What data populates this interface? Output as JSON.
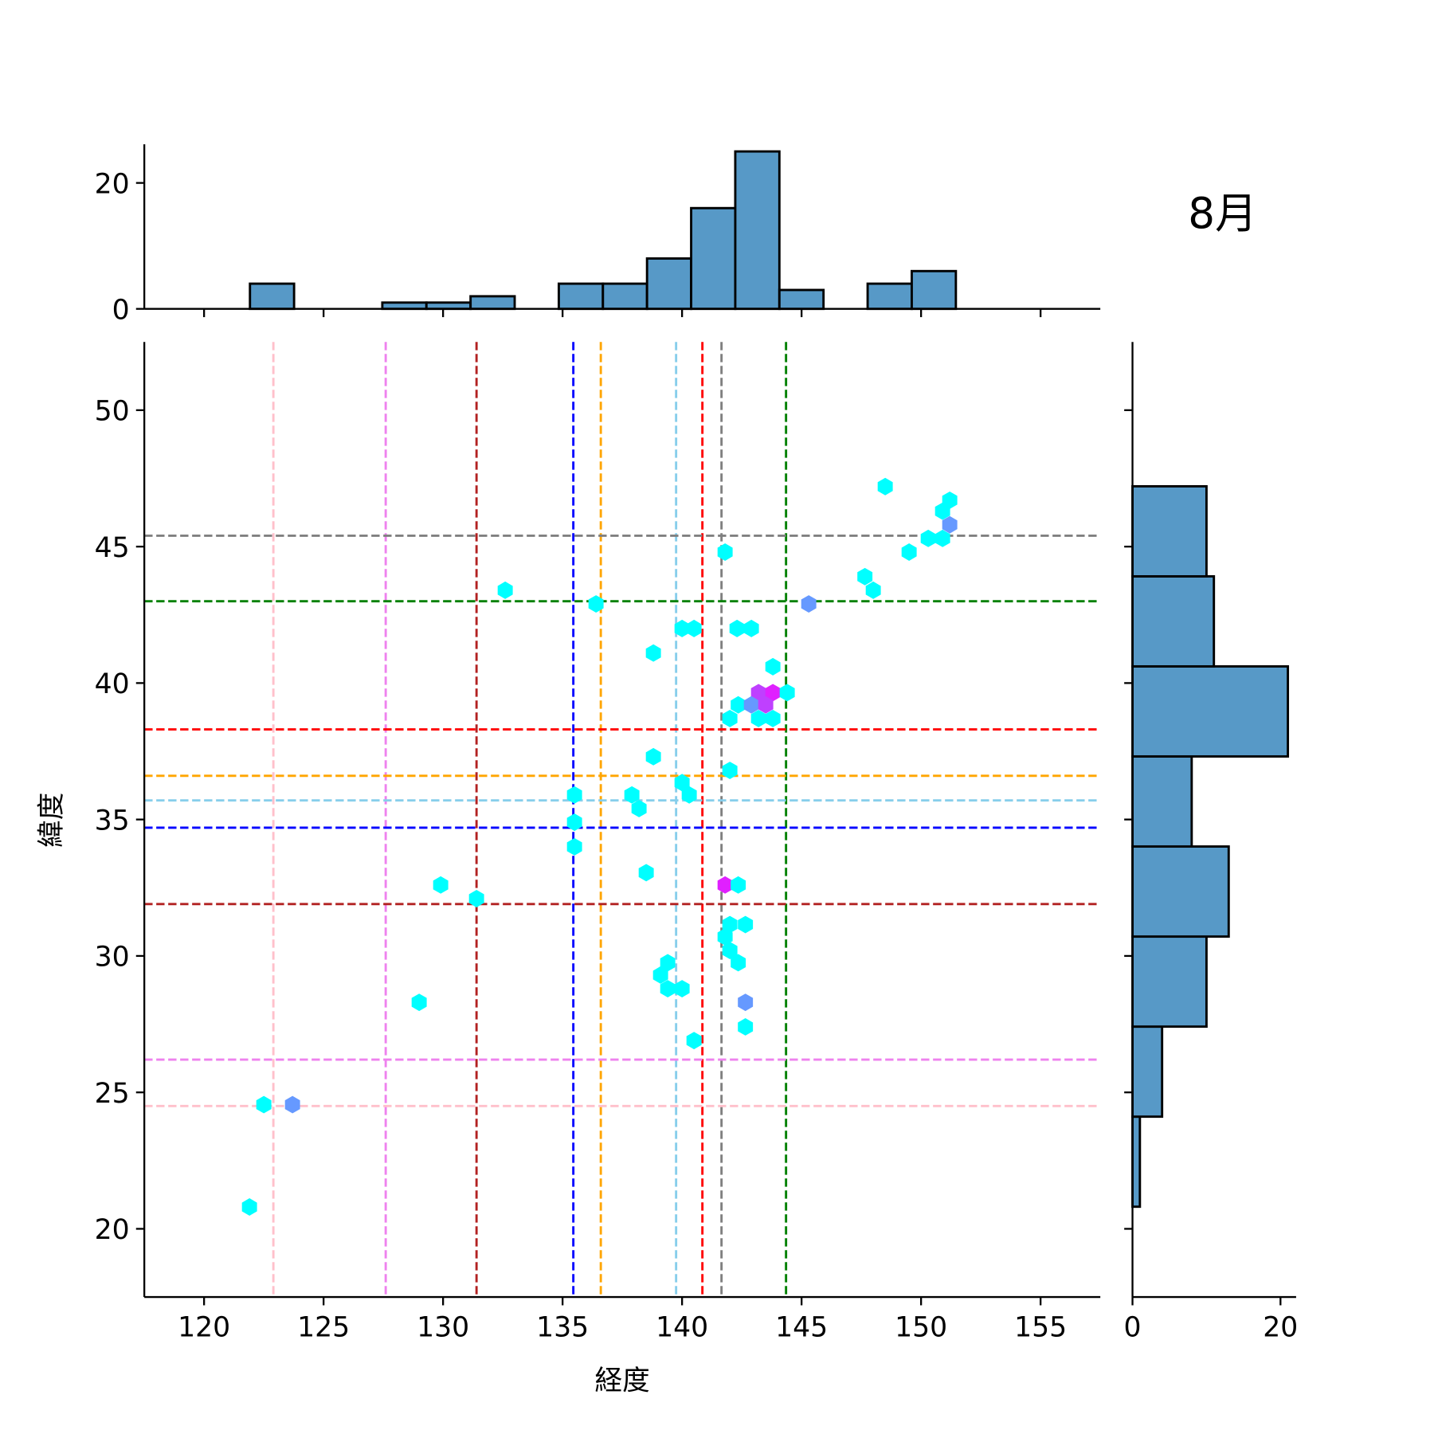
{
  "chart_data": {
    "type": "hexbin-jointplot",
    "title": "8月",
    "xlabel": "経度",
    "ylabel": "緯度",
    "xlim": [
      117.5,
      157.5
    ],
    "ylim": [
      17.5,
      52.5
    ],
    "xticks": [
      120,
      125,
      130,
      135,
      140,
      145,
      150,
      155
    ],
    "yticks": [
      20,
      25,
      30,
      35,
      40,
      45,
      50
    ],
    "grid": false,
    "colors": {
      "hist": "#5799c7",
      "low": "#00ffff",
      "mid": "#6699ff",
      "high": "#bf40ff",
      "max": "#e020ff"
    },
    "hexbins": [
      {
        "lon": 148.5,
        "lat": 47.2,
        "c": 1
      },
      {
        "lon": 151.2,
        "lat": 46.7,
        "c": 1
      },
      {
        "lon": 150.9,
        "lat": 46.3,
        "c": 1
      },
      {
        "lon": 151.2,
        "lat": 45.8,
        "c": 2
      },
      {
        "lon": 150.3,
        "lat": 45.3,
        "c": 1
      },
      {
        "lon": 150.9,
        "lat": 45.3,
        "c": 1
      },
      {
        "lon": 149.5,
        "lat": 44.8,
        "c": 1
      },
      {
        "lon": 141.8,
        "lat": 44.8,
        "c": 1
      },
      {
        "lon": 147.65,
        "lat": 43.9,
        "c": 1
      },
      {
        "lon": 148.0,
        "lat": 43.4,
        "c": 1
      },
      {
        "lon": 132.6,
        "lat": 43.4,
        "c": 1
      },
      {
        "lon": 136.4,
        "lat": 42.9,
        "c": 1
      },
      {
        "lon": 145.3,
        "lat": 42.9,
        "c": 2
      },
      {
        "lon": 140.0,
        "lat": 42.0,
        "c": 1
      },
      {
        "lon": 140.5,
        "lat": 42.0,
        "c": 1
      },
      {
        "lon": 142.3,
        "lat": 42.0,
        "c": 1
      },
      {
        "lon": 142.9,
        "lat": 42.0,
        "c": 1
      },
      {
        "lon": 138.8,
        "lat": 41.1,
        "c": 1
      },
      {
        "lon": 143.8,
        "lat": 40.6,
        "c": 1
      },
      {
        "lon": 143.2,
        "lat": 39.65,
        "c": 3
      },
      {
        "lon": 143.8,
        "lat": 39.65,
        "c": 4
      },
      {
        "lon": 144.4,
        "lat": 39.65,
        "c": 1
      },
      {
        "lon": 142.35,
        "lat": 39.2,
        "c": 1
      },
      {
        "lon": 142.9,
        "lat": 39.2,
        "c": 2
      },
      {
        "lon": 143.5,
        "lat": 39.2,
        "c": 3
      },
      {
        "lon": 142.0,
        "lat": 38.7,
        "c": 1
      },
      {
        "lon": 143.2,
        "lat": 38.7,
        "c": 1
      },
      {
        "lon": 143.8,
        "lat": 38.7,
        "c": 1
      },
      {
        "lon": 138.8,
        "lat": 37.3,
        "c": 1
      },
      {
        "lon": 142.0,
        "lat": 36.8,
        "c": 1
      },
      {
        "lon": 140.0,
        "lat": 36.35,
        "c": 1
      },
      {
        "lon": 140.3,
        "lat": 35.9,
        "c": 1
      },
      {
        "lon": 135.5,
        "lat": 35.9,
        "c": 1
      },
      {
        "lon": 137.9,
        "lat": 35.9,
        "c": 1
      },
      {
        "lon": 138.2,
        "lat": 35.4,
        "c": 1
      },
      {
        "lon": 135.5,
        "lat": 34.9,
        "c": 1
      },
      {
        "lon": 135.5,
        "lat": 34.0,
        "c": 1
      },
      {
        "lon": 138.5,
        "lat": 33.05,
        "c": 1
      },
      {
        "lon": 129.9,
        "lat": 32.6,
        "c": 1
      },
      {
        "lon": 141.8,
        "lat": 32.6,
        "c": 4
      },
      {
        "lon": 142.35,
        "lat": 32.6,
        "c": 1
      },
      {
        "lon": 131.4,
        "lat": 32.1,
        "c": 1
      },
      {
        "lon": 142.0,
        "lat": 31.15,
        "c": 1
      },
      {
        "lon": 142.65,
        "lat": 31.15,
        "c": 1
      },
      {
        "lon": 141.8,
        "lat": 30.7,
        "c": 1
      },
      {
        "lon": 142.0,
        "lat": 30.2,
        "c": 1
      },
      {
        "lon": 142.35,
        "lat": 29.75,
        "c": 1
      },
      {
        "lon": 139.4,
        "lat": 29.75,
        "c": 1
      },
      {
        "lon": 139.1,
        "lat": 29.3,
        "c": 1
      },
      {
        "lon": 139.4,
        "lat": 28.8,
        "c": 1
      },
      {
        "lon": 140.0,
        "lat": 28.8,
        "c": 1
      },
      {
        "lon": 129.0,
        "lat": 28.3,
        "c": 1
      },
      {
        "lon": 142.65,
        "lat": 28.3,
        "c": 2
      },
      {
        "lon": 142.65,
        "lat": 27.4,
        "c": 1
      },
      {
        "lon": 140.5,
        "lat": 26.9,
        "c": 1
      },
      {
        "lon": 122.5,
        "lat": 24.55,
        "c": 1
      },
      {
        "lon": 123.7,
        "lat": 24.55,
        "c": 2
      },
      {
        "lon": 121.9,
        "lat": 20.8,
        "c": 1
      }
    ],
    "lon_hist": {
      "start": 121.92,
      "bin_width": 1.846,
      "counts": [
        4,
        0,
        0,
        1,
        1,
        2,
        0,
        4,
        4,
        8,
        16,
        25,
        3,
        0,
        4,
        6
      ],
      "yticks": [
        0,
        20
      ]
    },
    "lat_hist": {
      "start": 20.81,
      "bin_width": 3.3,
      "counts": [
        1,
        4,
        10,
        13,
        8,
        21,
        11,
        10
      ],
      "xticks": [
        0,
        20
      ]
    },
    "vlines": [
      {
        "lon": 122.9,
        "color": "#ffc0cb"
      },
      {
        "lon": 127.6,
        "color": "#ee82ee"
      },
      {
        "lon": 131.4,
        "color": "#b22222"
      },
      {
        "lon": 135.45,
        "color": "#0000ff"
      },
      {
        "lon": 136.6,
        "color": "#ffa500"
      },
      {
        "lon": 139.75,
        "color": "#87ceeb"
      },
      {
        "lon": 140.85,
        "color": "#ff0000"
      },
      {
        "lon": 141.65,
        "color": "#808080"
      },
      {
        "lon": 144.35,
        "color": "#008000"
      }
    ],
    "hlines": [
      {
        "lat": 45.4,
        "color": "#808080"
      },
      {
        "lat": 43.0,
        "color": "#008000"
      },
      {
        "lat": 38.3,
        "color": "#ff0000"
      },
      {
        "lat": 36.6,
        "color": "#ffa500"
      },
      {
        "lat": 35.7,
        "color": "#87ceeb"
      },
      {
        "lat": 34.7,
        "color": "#0000ff"
      },
      {
        "lat": 31.9,
        "color": "#b22222"
      },
      {
        "lat": 26.2,
        "color": "#ee82ee"
      },
      {
        "lat": 24.5,
        "color": "#ffc0cb"
      }
    ]
  }
}
